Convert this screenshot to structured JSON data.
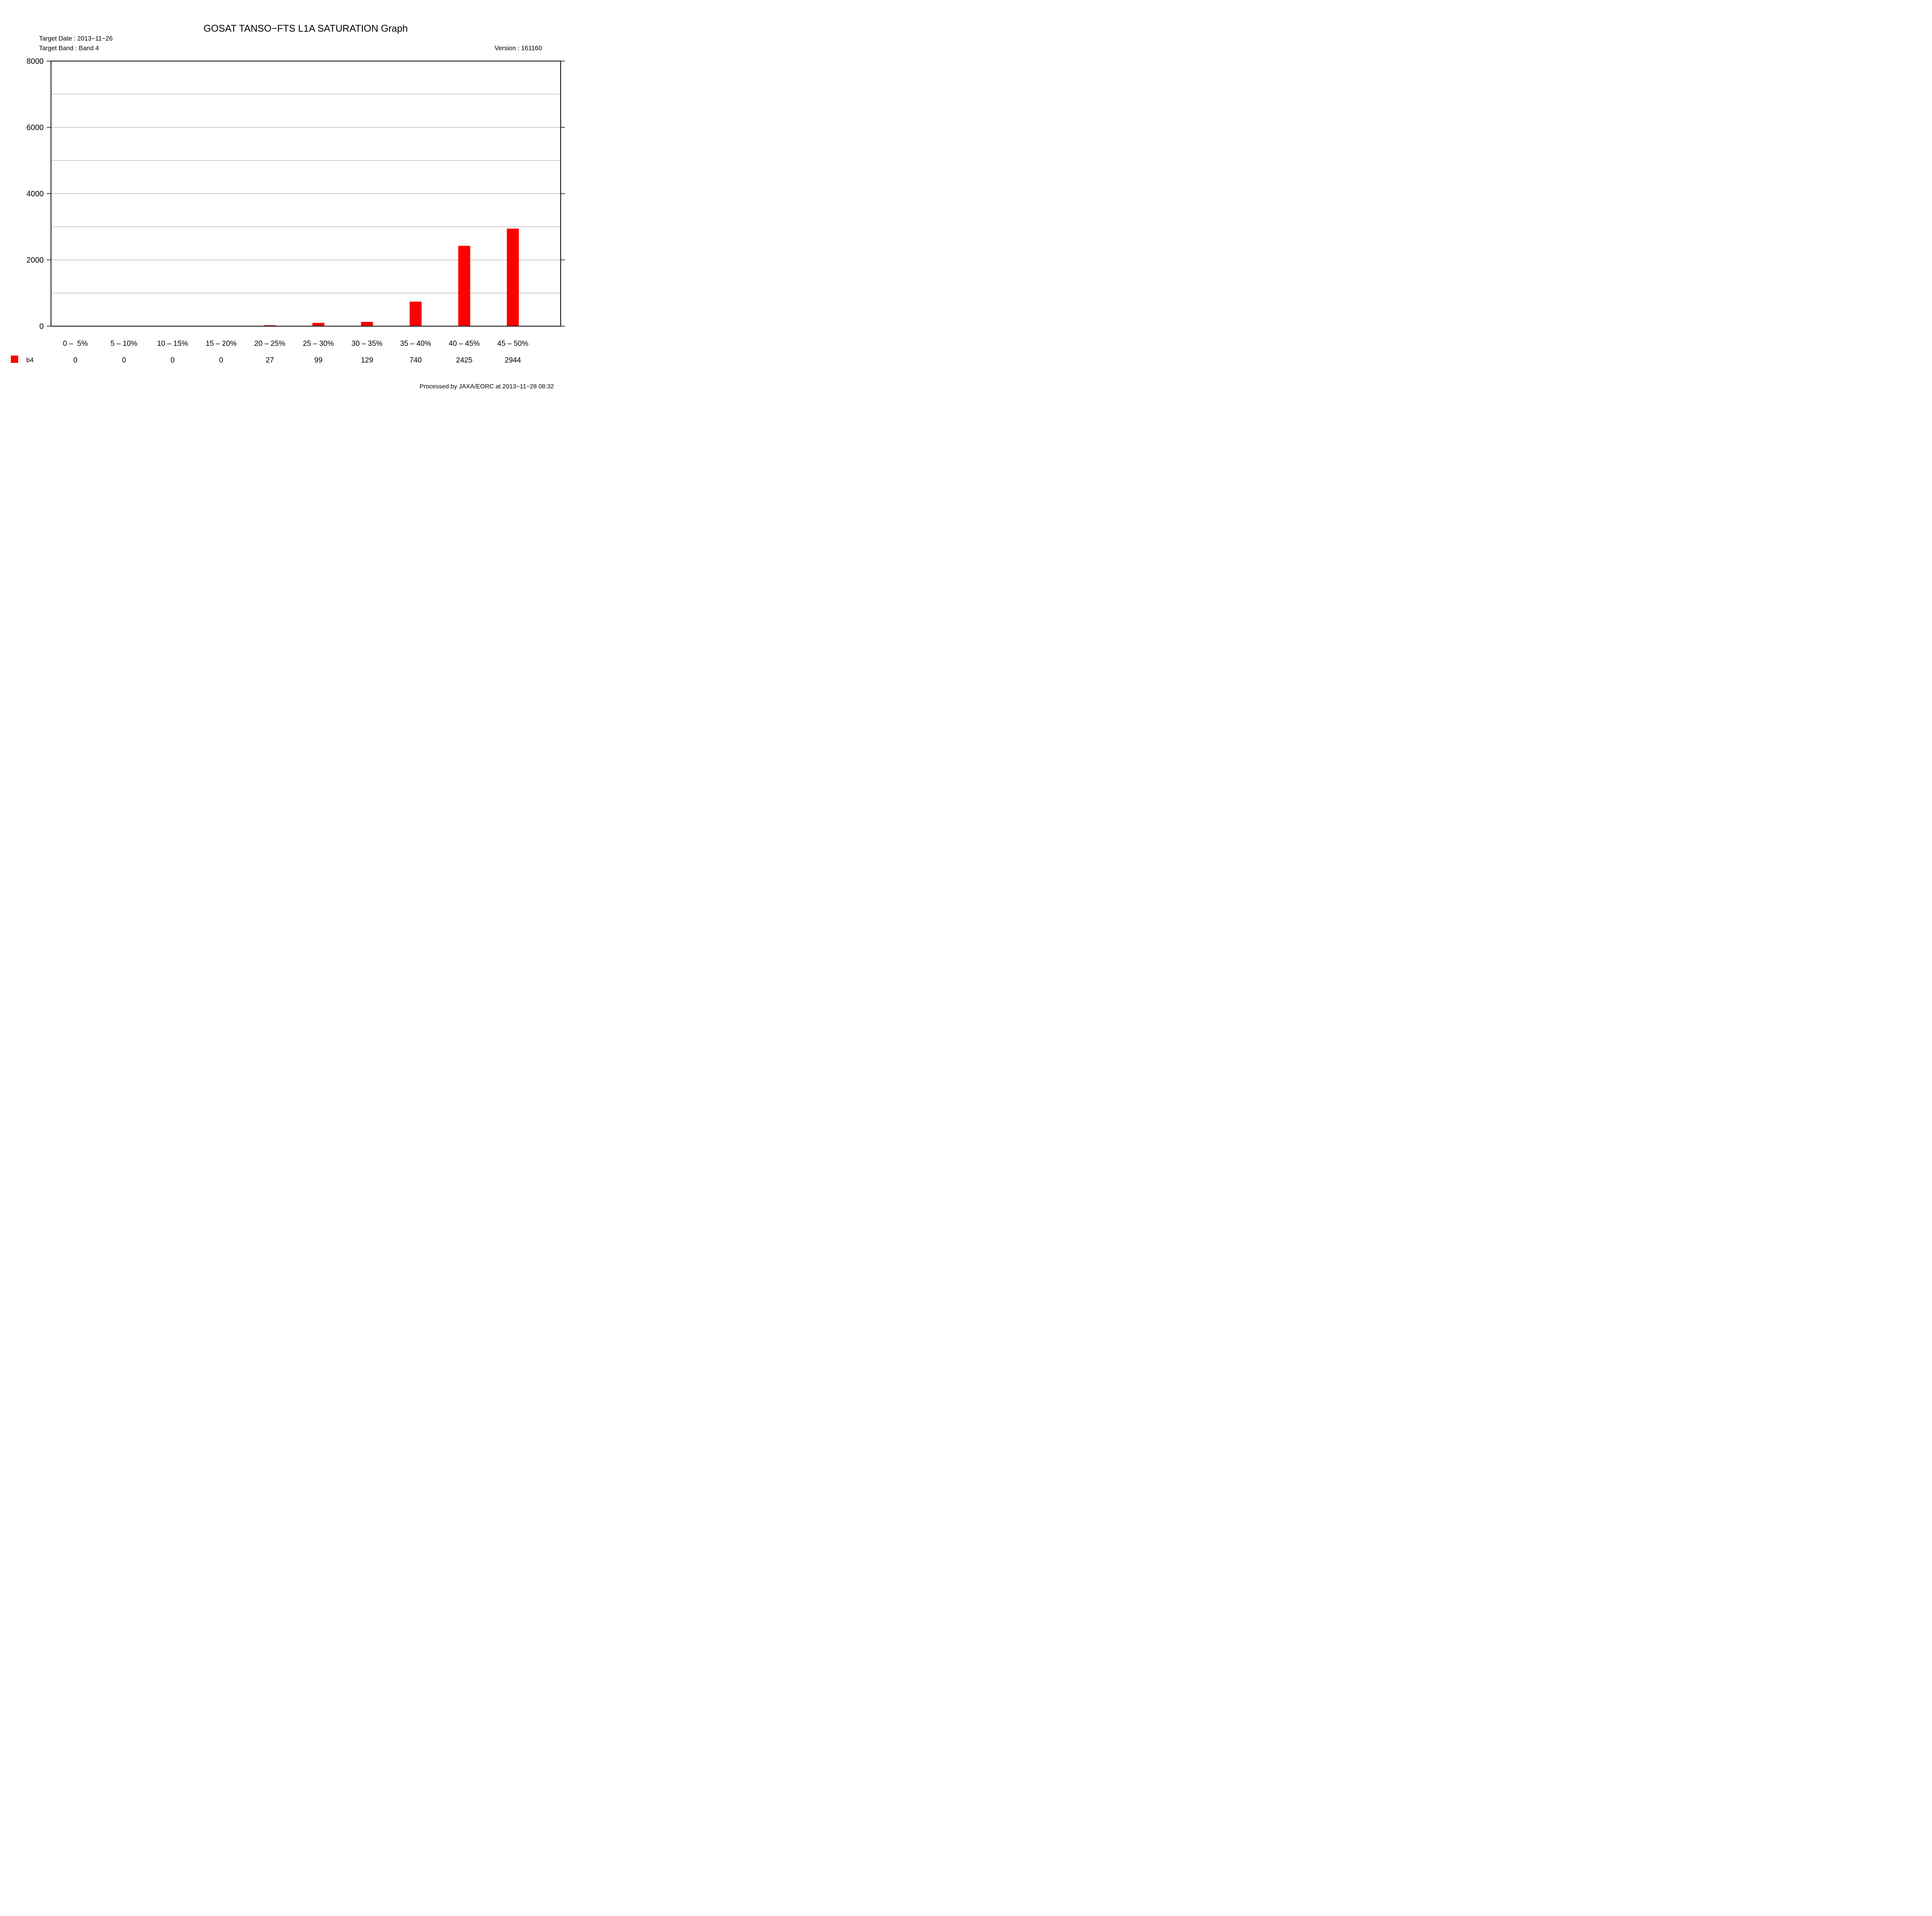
{
  "header": {
    "title": "GOSAT TANSO−FTS L1A SATURATION Graph",
    "target_date": "Target Date : 2013−11−26",
    "target_band": "Target Band : Band 4",
    "version": "Version : 161160"
  },
  "footer": {
    "processed": "Processed by JAXA/EORC at 2013−11−28 08:32"
  },
  "chart_data": {
    "type": "bar",
    "title": "GOSAT TANSO−FTS L1A SATURATION Graph",
    "categories": [
      "0 –  5%",
      "5 – 10%",
      "10 – 15%",
      "15 – 20%",
      "20 – 25%",
      "25 – 30%",
      "30 – 35%",
      "35 – 40%",
      "40 – 45%",
      "45 – 50%"
    ],
    "series": [
      {
        "name": "b4",
        "color": "#ff0000",
        "values": [
          0,
          0,
          0,
          0,
          27,
          99,
          129,
          740,
          2425,
          2944
        ]
      }
    ],
    "ylim": [
      0,
      8000
    ],
    "yticks": [
      0,
      2000,
      4000,
      6000,
      8000
    ],
    "ytick_labels": [
      "0",
      "2000",
      "4000",
      "6000",
      "8000"
    ],
    "grid": true,
    "minor_grid": [
      1000,
      3000,
      5000,
      7000
    ],
    "legend": "bottom-left table"
  }
}
